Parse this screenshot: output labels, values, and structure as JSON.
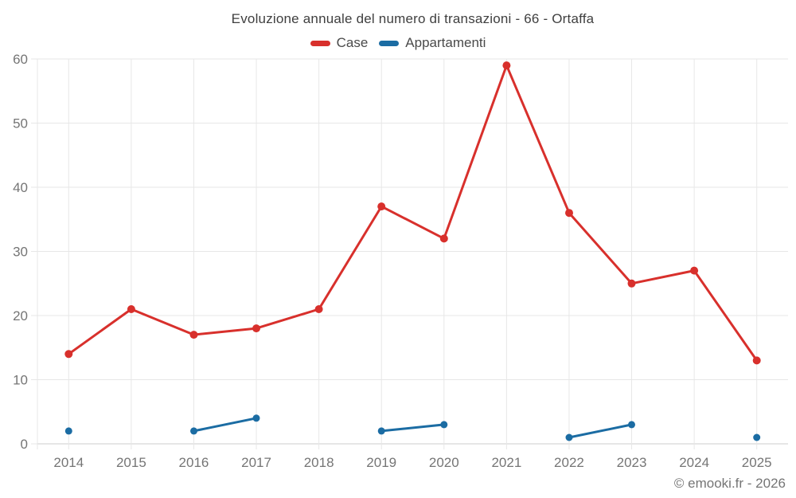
{
  "title": "Evoluzione annuale del numero di transazioni - 66 - Ortaffa",
  "footer": {
    "copyright": "© emooki.fr - 2026"
  },
  "colors": {
    "case_red": "#d8302c",
    "appartamenti_blue": "#1b6ca3",
    "grid": "#e7e7e7",
    "axis_line": "#cccccc",
    "tick_label": "#757575",
    "title_text": "#3f3f3f",
    "legend_text": "#4a4a4a",
    "background": "#ffffff"
  },
  "chart_data": {
    "type": "line",
    "title": "Evoluzione annuale del numero di transazioni - 66 - Ortaffa",
    "x": [
      2014,
      2015,
      2016,
      2017,
      2018,
      2019,
      2020,
      2021,
      2022,
      2023,
      2024,
      2025
    ],
    "series": [
      {
        "name": "Case",
        "color": "#d8302c",
        "values": [
          14,
          21,
          17,
          18,
          21,
          37,
          32,
          59,
          36,
          25,
          27,
          13
        ]
      },
      {
        "name": "Appartamenti",
        "color": "#1b6ca3",
        "values": [
          2,
          null,
          2,
          4,
          null,
          2,
          3,
          null,
          1,
          3,
          null,
          1
        ]
      }
    ],
    "xlabel": "",
    "ylabel": "",
    "ylim": [
      0,
      60
    ],
    "yticks": [
      0,
      10,
      20,
      30,
      40,
      50,
      60
    ],
    "grid": true,
    "legend_position": "top"
  }
}
